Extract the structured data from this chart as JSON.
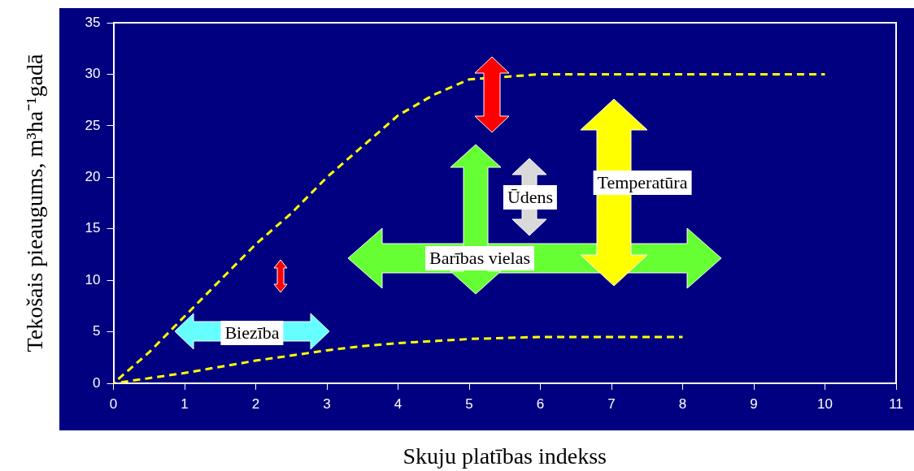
{
  "chart_data": {
    "type": "line",
    "xlabel": "Skuju platības indekss",
    "ylabel": "Tekošais pieaugums, m³ha⁻¹gadā",
    "xlim": [
      0,
      11
    ],
    "xticks": [
      0,
      1,
      2,
      3,
      4,
      5,
      6,
      7,
      8,
      9,
      10,
      11
    ],
    "ylim": [
      0,
      35
    ],
    "yticks": [
      0,
      5,
      10,
      15,
      20,
      25,
      30,
      35
    ],
    "grid": false,
    "legend": false,
    "marker": "none",
    "line_style": "dashed",
    "series": [
      {
        "color": "#ffff00",
        "x": [
          0,
          0.5,
          1,
          1.5,
          2,
          2.5,
          3,
          3.5,
          4,
          4.5,
          5,
          6,
          7,
          8,
          9,
          10
        ],
        "values": [
          0,
          3,
          6.5,
          10,
          13.5,
          16.5,
          20,
          23,
          26,
          28,
          29.5,
          30,
          30,
          30,
          30,
          30
        ]
      },
      {
        "color": "#ffff00",
        "x": [
          0,
          0.5,
          1,
          1.5,
          2,
          2.5,
          3,
          3.5,
          4,
          4.5,
          5,
          5.5,
          6,
          7,
          8
        ],
        "values": [
          0,
          0.5,
          1,
          1.6,
          2.2,
          2.7,
          3.2,
          3.6,
          3.9,
          4.1,
          4.3,
          4.4,
          4.5,
          4.5,
          4.5
        ]
      }
    ],
    "annotations": [
      "Biezība",
      "Ūdens",
      "Temperatūra",
      "Barības vielas"
    ]
  }
}
